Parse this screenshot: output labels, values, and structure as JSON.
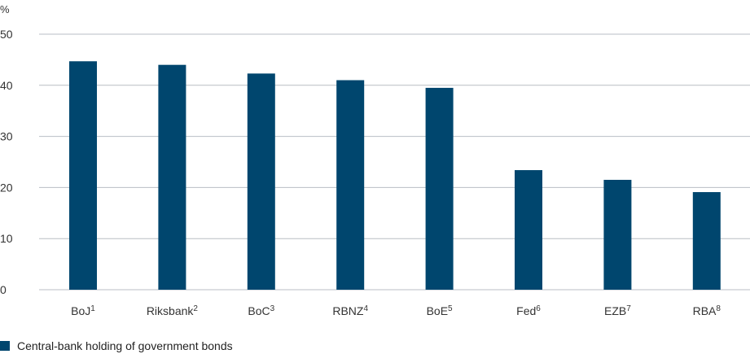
{
  "chart_data": {
    "type": "bar",
    "y_unit": "%",
    "categories": [
      "BoJ",
      "Riksbank",
      "BoC",
      "RBNZ",
      "BoE",
      "Fed",
      "EZB",
      "RBA"
    ],
    "category_footnotes": [
      "1",
      "2",
      "3",
      "4",
      "5",
      "6",
      "7",
      "8"
    ],
    "series": [
      {
        "name": "Central-bank holding of government bonds",
        "color": "#00466e",
        "values": [
          44.7,
          44.0,
          42.3,
          41.0,
          39.5,
          23.4,
          21.5,
          19.1
        ]
      }
    ],
    "ylim": [
      0,
      50
    ],
    "yticks": [
      0,
      10,
      20,
      30,
      40,
      50
    ],
    "grid": true,
    "legend_position": "bottom-left",
    "colors": {
      "gridline": "#b9bec4",
      "axis_text": "#333333"
    }
  }
}
